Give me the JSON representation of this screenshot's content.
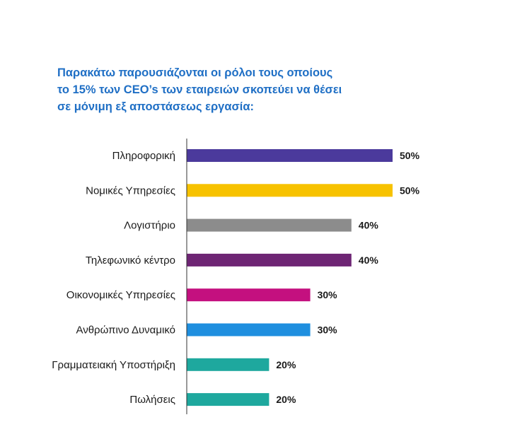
{
  "title_lines": [
    "Παρακάτω παρουσιάζονται οι ρόλοι τους οποίους",
    "το 15% των CEO’s των εταιρειών σκοπεύει να θέσει",
    "σε μόνιμη εξ αποστάσεως εργασία:"
  ],
  "chart_data": {
    "type": "bar",
    "orientation": "horizontal",
    "title": "Παρακάτω παρουσιάζονται οι ρόλοι τους οποίους το 15% των CEO’s των εταιρειών σκοπεύει να θέσει σε μόνιμη εξ αποστάσεως εργασία:",
    "categories": [
      "Πληροφορική",
      "Νομικές Υπηρεσίες",
      "Λογιστήριο",
      "Τηλεφωνικό κέντρο",
      "Οικονομικές Υπηρεσίες",
      "Ανθρώπινο Δυναμικό",
      "Γραμματειακή Υποστήριξη",
      "Πωλήσεις"
    ],
    "values": [
      50,
      50,
      40,
      40,
      30,
      30,
      20,
      20
    ],
    "value_labels": [
      "50%",
      "50%",
      "40%",
      "40%",
      "30%",
      "30%",
      "20%",
      "20%"
    ],
    "colors": [
      "#4b3a9c",
      "#f7c200",
      "#8c8c8c",
      "#6e2574",
      "#c4107f",
      "#1f8fdf",
      "#1ea89e",
      "#1ea89e"
    ],
    "xlim": [
      0,
      50
    ],
    "grid": false,
    "legend": "none",
    "xlabel": "",
    "ylabel": ""
  }
}
